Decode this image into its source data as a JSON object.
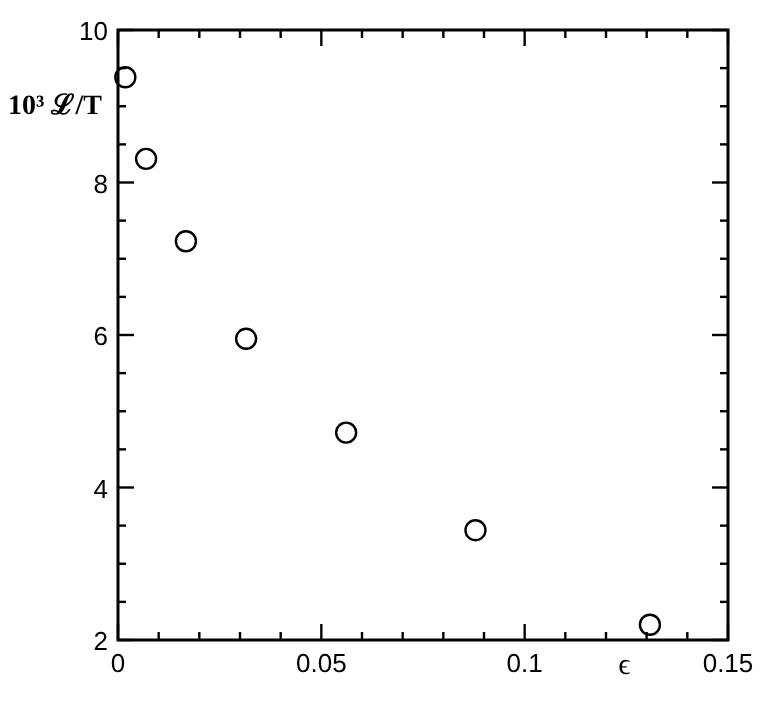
{
  "chart_data": {
    "type": "scatter",
    "xlabel": "ϵ",
    "ylabel": "10³ ℒ/T",
    "x": [
      0.0018,
      0.0069,
      0.0167,
      0.0315,
      0.0561,
      0.0879,
      0.1308
    ],
    "values": [
      9.38,
      8.31,
      7.23,
      5.95,
      4.72,
      3.44,
      2.2
    ],
    "color": "#000000",
    "marker": "circle",
    "grid": false,
    "xlim": [
      0,
      0.15
    ],
    "xticks": [
      {
        "value": 0,
        "label": "0"
      },
      {
        "value": 0.01,
        "label": null
      },
      {
        "value": 0.02,
        "label": null
      },
      {
        "value": 0.03,
        "label": null
      },
      {
        "value": 0.04,
        "label": null
      },
      {
        "value": 0.05,
        "label": "0.05"
      },
      {
        "value": 0.06,
        "label": null
      },
      {
        "value": 0.07,
        "label": null
      },
      {
        "value": 0.08,
        "label": null
      },
      {
        "value": 0.09,
        "label": null
      },
      {
        "value": 0.1,
        "label": "0.1"
      },
      {
        "value": 0.11,
        "label": null
      },
      {
        "value": 0.12,
        "label": null
      },
      {
        "value": 0.13,
        "label": null
      },
      {
        "value": 0.14,
        "label": null
      },
      {
        "value": 0.15,
        "label": "0.15"
      }
    ],
    "ylim": [
      2,
      10
    ],
    "yticks": [
      2,
      {
        "value": 2.5,
        "label": null
      },
      {
        "value": 3,
        "label": null
      },
      {
        "value": 3.5,
        "label": null
      },
      4,
      {
        "value": 4.5,
        "label": null
      },
      {
        "value": 5,
        "label": null
      },
      {
        "value": 5.5,
        "label": null
      },
      6,
      {
        "value": 6.5,
        "label": null
      },
      {
        "value": 7,
        "label": null
      },
      {
        "value": 7.5,
        "label": null
      },
      8,
      {
        "value": 8.5,
        "label": null
      },
      {
        "value": 9,
        "label": null
      },
      {
        "value": 9.5,
        "label": null
      },
      10
    ]
  }
}
